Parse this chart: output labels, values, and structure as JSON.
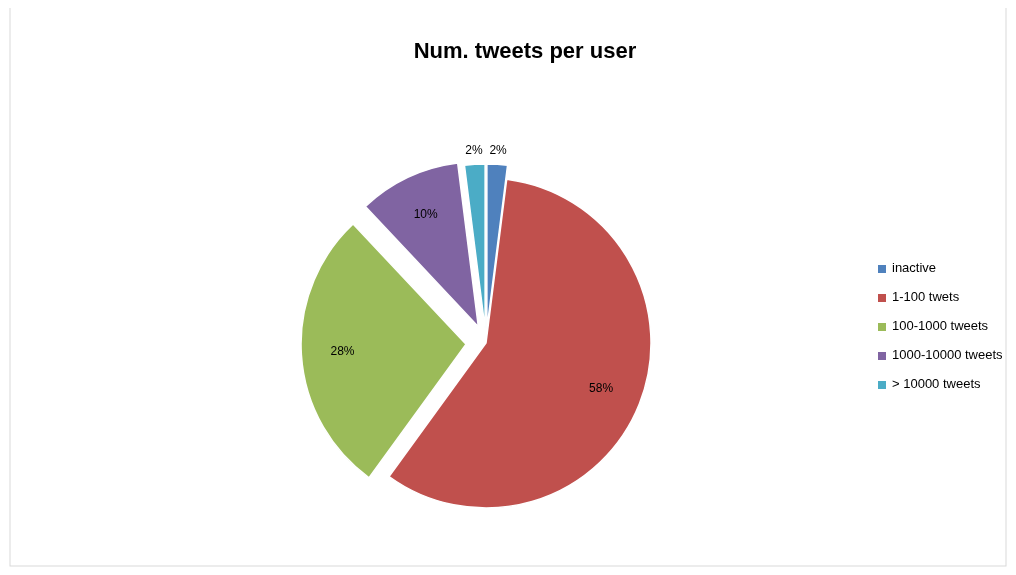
{
  "chart_data": {
    "type": "pie",
    "title": "Num. tweets per user",
    "categories": [
      "inactive",
      "1-100 twets",
      "100-1000 tweets",
      "1000-10000 tweets",
      "> 10000 tweets"
    ],
    "values": [
      2,
      58,
      28,
      10,
      2
    ],
    "colors": [
      "#4f81bd",
      "#c0504d",
      "#9bbb59",
      "#8064a2",
      "#4bacc6"
    ],
    "value_labels": [
      "2%",
      "58%",
      "28%",
      "10%",
      "2%"
    ],
    "legend": "right"
  }
}
